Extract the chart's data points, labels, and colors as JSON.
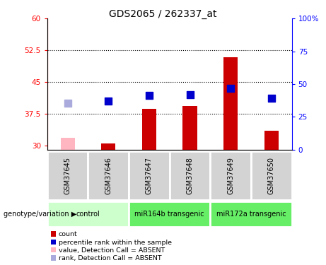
{
  "title": "GDS2065 / 262337_at",
  "samples": [
    "GSM37645",
    "GSM37646",
    "GSM37647",
    "GSM37648",
    "GSM37649",
    "GSM37650"
  ],
  "bar_values": [
    null,
    30.4,
    38.6,
    39.3,
    50.8,
    33.5
  ],
  "bar_absent": [
    31.8,
    null,
    null,
    null,
    null,
    null
  ],
  "dot_values": [
    null,
    40.5,
    41.8,
    42.0,
    43.5,
    41.2
  ],
  "dot_absent": [
    40.0,
    null,
    null,
    null,
    null,
    null
  ],
  "bar_color": "#CC0000",
  "bar_absent_color": "#FFB6C1",
  "dot_color": "#0000CC",
  "dot_absent_color": "#AAAADD",
  "ylim_left": [
    29,
    60
  ],
  "ylim_right": [
    0,
    100
  ],
  "yticks_left": [
    30,
    37.5,
    45,
    52.5,
    60
  ],
  "ytick_labels_left": [
    "30",
    "37.5",
    "45",
    "52.5",
    "60"
  ],
  "yticks_right": [
    0,
    25,
    50,
    75,
    100
  ],
  "ytick_labels_right": [
    "0",
    "25",
    "50",
    "75",
    "100%"
  ],
  "hlines": [
    37.5,
    45,
    52.5
  ],
  "group_defs": [
    {
      "label": "control",
      "start": 0,
      "end": 1,
      "color": "#CCFFCC"
    },
    {
      "label": "miR164b transgenic",
      "start": 2,
      "end": 3,
      "color": "#66EE66"
    },
    {
      "label": "miR172a transgenic",
      "start": 4,
      "end": 5,
      "color": "#66EE66"
    }
  ],
  "legend_items": [
    {
      "label": "count",
      "color": "#CC0000"
    },
    {
      "label": "percentile rank within the sample",
      "color": "#0000CC"
    },
    {
      "label": "value, Detection Call = ABSENT",
      "color": "#FFB6C1"
    },
    {
      "label": "rank, Detection Call = ABSENT",
      "color": "#AAAADD"
    }
  ],
  "bar_width": 0.35,
  "dot_size": 55,
  "sample_box_color": "#D3D3D3",
  "genotype_label": "genotype/variation"
}
